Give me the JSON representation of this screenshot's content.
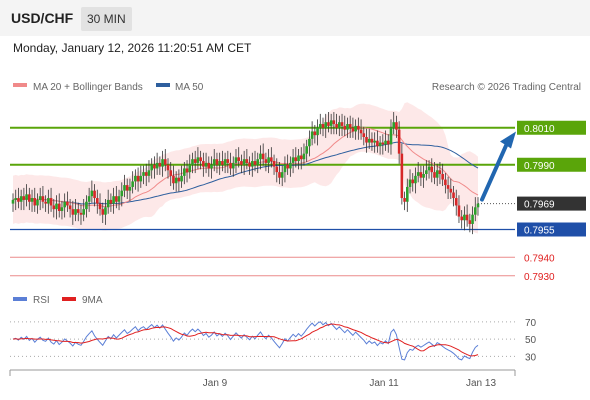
{
  "header": {
    "symbol": "USD/CHF",
    "timeframe": "30 MIN"
  },
  "datetime": "Monday, January 12, 2026 11:20:51 AM CET",
  "credit": "Research © 2026 Trading Central",
  "legend_main": [
    {
      "label": "MA 20 + Bollinger Bands",
      "color": "#f08a8a"
    },
    {
      "label": "MA 50",
      "color": "#2e5f9e"
    }
  ],
  "legend_rsi": [
    {
      "label": "RSI",
      "color": "#5b7fd6"
    },
    {
      "label": "9MA",
      "color": "#e02020"
    }
  ],
  "colors": {
    "green": "#5aa50a",
    "blue": "#1f4fa8",
    "red": "#e88080",
    "dark": "#333333"
  },
  "icons": [
    "up-arrow-icon"
  ],
  "chart_data": [
    {
      "type": "candlestick",
      "x_ticks": [
        "Jan 9",
        "Jan 11",
        "Jan 13"
      ],
      "ylim": [
        0.7925,
        0.8025
      ],
      "price_levels": [
        {
          "label": "0.8010",
          "value": 0.801,
          "style": "resistance",
          "color": "#5aa50a"
        },
        {
          "label": "0.7990",
          "value": 0.799,
          "style": "resistance",
          "color": "#5aa50a"
        },
        {
          "label": "0.7969",
          "value": 0.7969,
          "style": "current",
          "color": "#333333"
        },
        {
          "label": "0.7955",
          "value": 0.7955,
          "style": "pivot",
          "color": "#1f4fa8"
        },
        {
          "label": "0.7940",
          "value": 0.794,
          "style": "support",
          "color": "#e04040"
        },
        {
          "label": "0.7930",
          "value": 0.793,
          "style": "support",
          "color": "#e04040"
        }
      ],
      "candles_close": [
        0.7971,
        0.7972,
        0.797,
        0.7973,
        0.7971,
        0.7974,
        0.797,
        0.7972,
        0.7968,
        0.7971,
        0.7973,
        0.797,
        0.7969,
        0.7972,
        0.7968,
        0.7966,
        0.7969,
        0.7965,
        0.7967,
        0.797,
        0.7968,
        0.7966,
        0.7963,
        0.7966,
        0.7964,
        0.7963,
        0.7966,
        0.797,
        0.7973,
        0.7976,
        0.7972,
        0.7969,
        0.7966,
        0.7963,
        0.7967,
        0.7971,
        0.7969,
        0.7973,
        0.797,
        0.7973,
        0.7976,
        0.7979,
        0.7976,
        0.7978,
        0.7981,
        0.7984,
        0.7981,
        0.7984,
        0.7986,
        0.7984,
        0.7987,
        0.799,
        0.7988,
        0.7991,
        0.7989,
        0.7993,
        0.799,
        0.7987,
        0.7984,
        0.798,
        0.7983,
        0.7981,
        0.7984,
        0.7988,
        0.7986,
        0.799,
        0.7993,
        0.7991,
        0.7994,
        0.7992,
        0.7989,
        0.7991,
        0.7988,
        0.799,
        0.7993,
        0.799,
        0.7992,
        0.799,
        0.7993,
        0.7991,
        0.7988,
        0.7991,
        0.7994,
        0.7992,
        0.799,
        0.7993,
        0.7991,
        0.7989,
        0.7992,
        0.799,
        0.7993,
        0.7996,
        0.7993,
        0.7991,
        0.7994,
        0.7992,
        0.7989,
        0.7986,
        0.7983,
        0.7986,
        0.799,
        0.7988,
        0.7991,
        0.7994,
        0.7992,
        0.7995,
        0.7993,
        0.7996,
        0.8,
        0.8004,
        0.8008,
        0.8006,
        0.801,
        0.8012,
        0.801,
        0.8013,
        0.8011,
        0.8014,
        0.8012,
        0.801,
        0.8013,
        0.8011,
        0.8009,
        0.8012,
        0.801,
        0.8008,
        0.8011,
        0.8009,
        0.8007,
        0.8005,
        0.8002,
        0.8004,
        0.8002,
        0.8003,
        0.8,
        0.8002,
        0.8001,
        0.8003,
        0.8001,
        0.801,
        0.8013,
        0.8009,
        0.7996,
        0.7972,
        0.797,
        0.7978,
        0.7982,
        0.798,
        0.7984,
        0.7986,
        0.7983,
        0.7985,
        0.7987,
        0.7989,
        0.7986,
        0.7983,
        0.7987,
        0.7985,
        0.7982,
        0.7979,
        0.7977,
        0.7975,
        0.7972,
        0.7968,
        0.7962,
        0.796,
        0.7963,
        0.796,
        0.7958,
        0.7963,
        0.7967,
        0.7969
      ]
    },
    {
      "type": "line",
      "name": "RSI",
      "y_ticks": [
        70,
        50,
        30
      ],
      "ylim": [
        20,
        78
      ]
    }
  ]
}
